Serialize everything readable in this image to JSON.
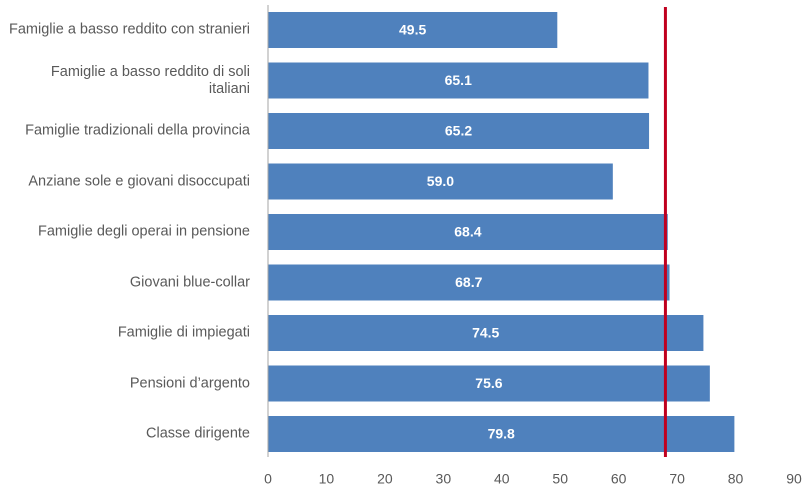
{
  "chart_data": {
    "type": "barh",
    "categories": [
      "Famiglie a basso reddito con stranieri",
      "Famiglie a basso reddito di soli italiani",
      "Famiglie tradizionali della provincia",
      "Anziane sole e giovani disoccupati",
      "Famiglie degli operai in pensione",
      "Giovani blue-collar",
      "Famiglie di impiegati",
      "Pensioni d’argento",
      "Classe dirigente"
    ],
    "values": [
      49.5,
      65.1,
      65.2,
      59,
      68.4,
      68.7,
      74.5,
      75.6,
      79.8
    ],
    "value_labels": [
      "49.5",
      "65.1",
      "65.2",
      "59.0",
      "68.4",
      "68.7",
      "74.5",
      "75.6",
      "79.8"
    ],
    "color": "#4f81bd",
    "xlim": [
      0,
      90
    ],
    "xticks": [
      0,
      10,
      20,
      30,
      40,
      50,
      60,
      70,
      80,
      90
    ],
    "reference_line": {
      "value": 68,
      "color": "#c0001f"
    }
  }
}
